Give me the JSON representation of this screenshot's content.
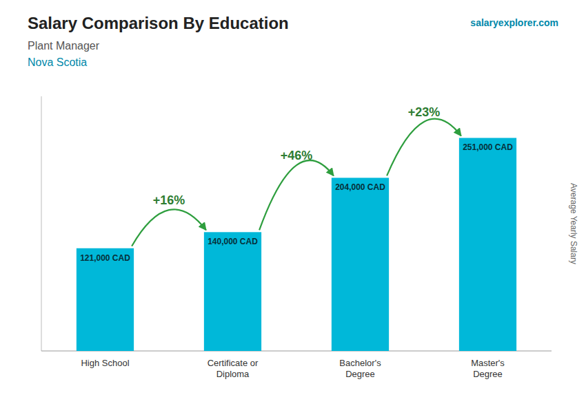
{
  "chart_data": {
    "type": "bar",
    "title": "Salary Comparison By Education",
    "subtitle": [
      "Plant Manager",
      "Nova Scotia"
    ],
    "brand": "salaryexplorer.com",
    "ylabel": "Average Yearly Salary",
    "categories": [
      "High School",
      "Certificate or\nDiploma",
      "Bachelor's\nDegree",
      "Master's\nDegree"
    ],
    "values": [
      121000,
      140000,
      204000,
      251000
    ],
    "value_labels": [
      "121,000 CAD",
      "140,000 CAD",
      "204,000 CAD",
      "251,000 CAD"
    ],
    "data_labels": true,
    "annotations": [
      "+16%",
      "+46%",
      "+23%"
    ],
    "color": "#00b8d9",
    "ylim": [
      0,
      300000
    ],
    "tick_labels": "x",
    "grid": false
  }
}
